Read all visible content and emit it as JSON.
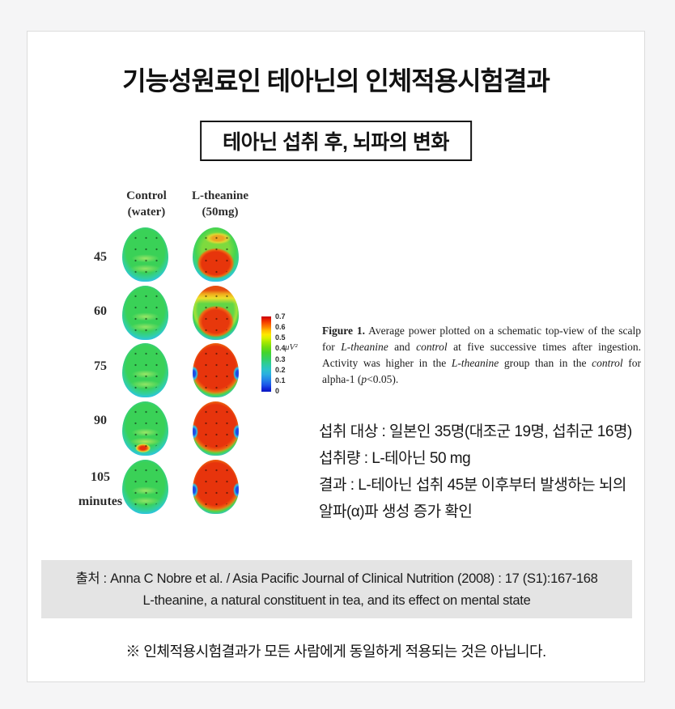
{
  "page": {
    "title": "기능성원료인 테아닌의 인체적용시험결과",
    "subtitle": "테아닌 섭취 후, 뇌파의 변화",
    "disclaimer": "※ 인체적용시험결과가 모든 사람에게 동일하게 적용되는 것은 아닙니다."
  },
  "figure": {
    "columns": [
      {
        "line1": "Control",
        "line2": "(water)"
      },
      {
        "line1": "L-theanine",
        "line2": "(50mg)"
      }
    ],
    "rows": [
      {
        "time": "45",
        "control_pattern": "low power (green, blue rim)",
        "theanine_pattern": "high power over posterior scalp (red), yellow-green front"
      },
      {
        "time": "60",
        "control_pattern": "low power (green, blue rim)",
        "theanine_pattern": "high power (red) with yellow-orange frontal band"
      },
      {
        "time": "75",
        "control_pattern": "low power (green, blue rim)",
        "theanine_pattern": "high power across scalp (red)"
      },
      {
        "time": "90",
        "control_pattern": "low power with small red occipital hotspot",
        "theanine_pattern": "high power across scalp (red)"
      },
      {
        "time": "105",
        "control_pattern": "low power (green, blue rim)",
        "theanine_pattern": "high power across scalp (red)"
      }
    ],
    "time_unit": "minutes",
    "colorbar": {
      "ticks": [
        "0.7",
        "0.6",
        "0.5",
        "0.4",
        "0.3",
        "0.2",
        "0.1",
        "0"
      ],
      "unit": "μV²",
      "top_color": "#d80000",
      "bottom_color": "#0a18c8"
    },
    "caption": {
      "label": "Figure 1.",
      "seg1": "  Average power plotted on a schematic top-view of the scalp for ",
      "seg2": "L-theanine",
      "seg3": " and ",
      "seg4": "control",
      "seg5": " at five successive times after ingestion. Activity was higher in the ",
      "seg6": "L-theanine",
      "seg7": " group than in the ",
      "seg8": "control",
      "seg9": " for alpha-1 (",
      "seg10": "p",
      "seg11": "<0.05)."
    }
  },
  "study": {
    "line1": "섭취 대상 : 일본인 35명(대조군 19명, 섭취군 16명)",
    "line2": "섭취량 : L-테아닌 50 mg",
    "line3": "결과 : L-테아닌 섭취 45분 이후부터 발생하는 뇌의",
    "line4": "알파(α)파 생성 증가 확인"
  },
  "source": {
    "line1": "출처 : Anna C Nobre et al. / Asia Pacific Journal of Clinical Nutrition (2008) : 17 (S1):167-168",
    "line2": "L-theanine, a natural constituent in tea, and its effect on mental state"
  }
}
